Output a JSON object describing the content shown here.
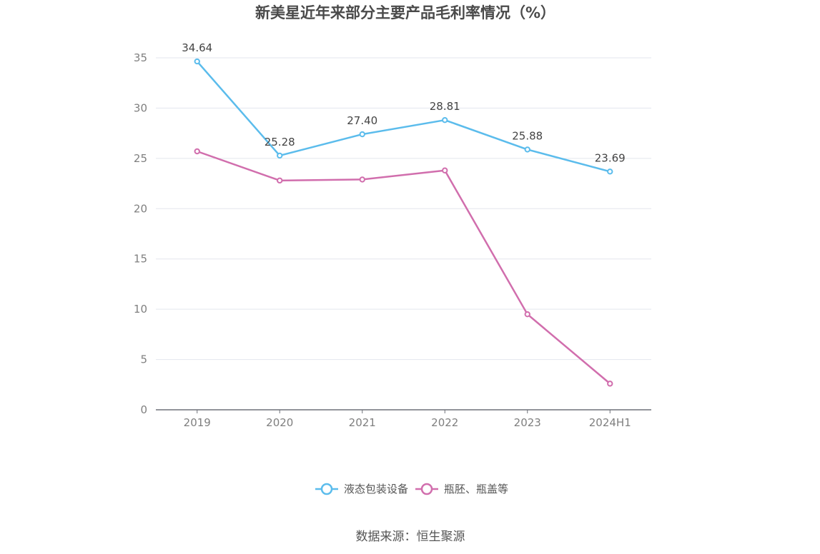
{
  "chart_data": {
    "type": "line",
    "title": "新美星近年来部分主要产品毛利率情况（%）",
    "categories": [
      "2019",
      "2020",
      "2021",
      "2022",
      "2023",
      "2024H1"
    ],
    "ylim": [
      0,
      35
    ],
    "yticks": [
      0,
      5,
      10,
      15,
      20,
      25,
      30,
      35
    ],
    "grid": true,
    "legend_position": "bottom-center",
    "series": [
      {
        "name": "液态包装设备",
        "color": "#5bbcec",
        "values": [
          34.64,
          25.28,
          27.4,
          28.81,
          25.88,
          23.69
        ],
        "data_labels": [
          "34.64",
          "25.28",
          "27.40",
          "28.81",
          "25.88",
          "23.69"
        ]
      },
      {
        "name": "瓶胚、瓶盖等",
        "color": "#d16ead",
        "values": [
          25.7,
          22.8,
          22.9,
          23.8,
          9.5,
          2.6
        ],
        "data_labels": []
      }
    ]
  },
  "source": "数据来源：恒生聚源"
}
